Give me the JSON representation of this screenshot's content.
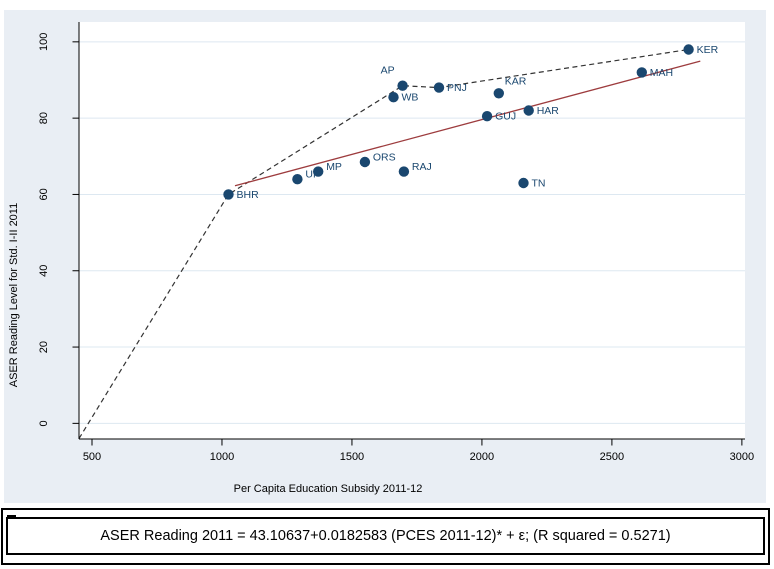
{
  "colors": {
    "graph_region_bg": "#e9eef4",
    "plot_bg": "#ffffff",
    "grid": "#dde8f1",
    "axis": "#000000",
    "marker": "#1a476f",
    "marker_label": "#1a476f",
    "regression_line": "#9d3c3e",
    "envelope_line": "#333333"
  },
  "chart_data": {
    "type": "scatter",
    "title": "",
    "xlabel": "Per Capita Education Subsidy 2011-12",
    "ylabel": "ASER Reading Level for Std. I-II 2011",
    "xlim": [
      450,
      3012
    ],
    "ylim": [
      -4.1,
      105.2
    ],
    "x_ticks": [
      500,
      1000,
      1500,
      2000,
      2500,
      3000
    ],
    "y_ticks": [
      0,
      20,
      40,
      60,
      80,
      100
    ],
    "grid": "horizontal",
    "legend": "none",
    "points": [
      {
        "label": "BHR",
        "x": 1025,
        "y": 60,
        "label_pos": "right"
      },
      {
        "label": "UP",
        "x": 1290,
        "y": 64,
        "label_pos": "upper-right"
      },
      {
        "label": "MP",
        "x": 1370,
        "y": 66,
        "label_pos": "upper-right"
      },
      {
        "label": "ORS",
        "x": 1550,
        "y": 68.5,
        "label_pos": "upper-right"
      },
      {
        "label": "RAJ",
        "x": 1700,
        "y": 66,
        "label_pos": "upper-right"
      },
      {
        "label": "WB",
        "x": 1660,
        "y": 85.5,
        "label_pos": "right"
      },
      {
        "label": "AP",
        "x": 1695,
        "y": 88.5,
        "label_pos": "upper-left"
      },
      {
        "label": "PNJ",
        "x": 1835,
        "y": 88,
        "label_pos": "right"
      },
      {
        "label": "KAR",
        "x": 2065,
        "y": 86.5,
        "label_pos": "above"
      },
      {
        "label": "GUJ",
        "x": 2020,
        "y": 80.5,
        "label_pos": "right"
      },
      {
        "label": "HAR",
        "x": 2180,
        "y": 82,
        "label_pos": "right"
      },
      {
        "label": "TN",
        "x": 2160,
        "y": 63,
        "label_pos": "right"
      },
      {
        "label": "MAH",
        "x": 2615,
        "y": 92,
        "label_pos": "right"
      },
      {
        "label": "KER",
        "x": 2795,
        "y": 98,
        "label_pos": "right"
      }
    ],
    "envelope_line": {
      "style": "dashed",
      "points": [
        [
          450,
          -4
        ],
        [
          1025,
          60
        ],
        [
          1695,
          88.5
        ],
        [
          1835,
          88
        ],
        [
          2795,
          98
        ]
      ]
    },
    "regression_line": {
      "style": "solid",
      "intercept": 43.10637,
      "slope": 0.0182583,
      "x_start": 1050,
      "x_end": 2840
    }
  },
  "equation": {
    "text": "ASER Reading 2011 = 43.10637+0.0182583 (PCES 2011-12)* + ε; (R squared = 0.5271)"
  }
}
